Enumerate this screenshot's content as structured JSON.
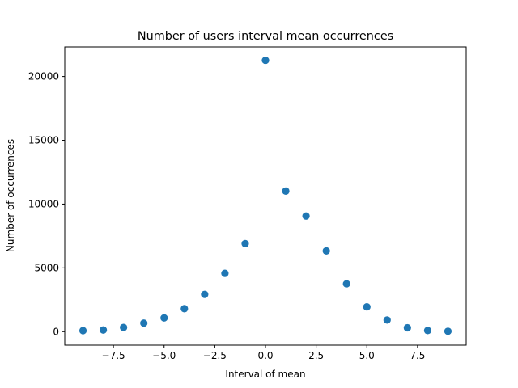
{
  "chart_data": {
    "type": "scatter",
    "title": "Number of users interval mean occurrences",
    "xlabel": "Interval of mean",
    "ylabel": "Number of occurrences",
    "xlim": [
      -9.9,
      9.9
    ],
    "ylim": [
      -1060,
      22320
    ],
    "grid": false,
    "marker_color": "#1f77b4",
    "x_ticks": [
      -7.5,
      -5.0,
      -2.5,
      0.0,
      2.5,
      5.0,
      7.5
    ],
    "x_tick_labels": [
      "−7.5",
      "−5.0",
      "−2.5",
      "0.0",
      "2.5",
      "5.0",
      "7.5"
    ],
    "y_ticks": [
      0,
      5000,
      10000,
      15000,
      20000
    ],
    "y_tick_labels": [
      "0",
      "5000",
      "10000",
      "15000",
      "20000"
    ],
    "series": [
      {
        "x": [
          -9,
          -8,
          -7,
          -6,
          -5,
          -4,
          -3,
          -2,
          -1,
          0,
          1,
          2,
          3,
          4,
          5,
          6,
          7,
          8,
          9
        ],
        "y": [
          80,
          130,
          330,
          670,
          1080,
          1800,
          2920,
          4570,
          6900,
          21270,
          11020,
          9060,
          6330,
          3750,
          1940,
          910,
          300,
          90,
          30
        ]
      }
    ]
  }
}
